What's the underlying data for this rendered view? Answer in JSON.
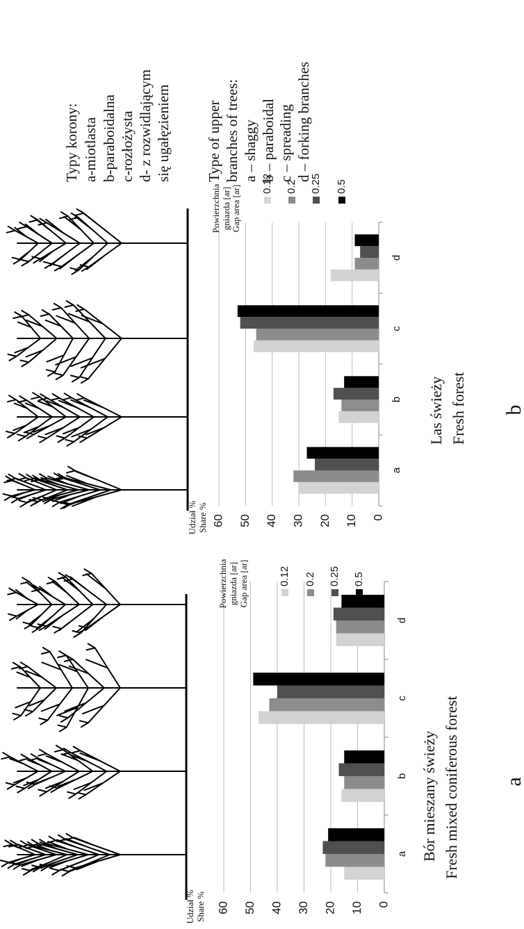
{
  "chart_data": [
    {
      "type": "bar",
      "title": "Bór mieszany świeży",
      "subtitle": "Fresh mixed coniferous forest",
      "panel": "a",
      "ylabel": "Udział %",
      "ylabel_en": "Share %",
      "legend_title": [
        "Powierzchnia",
        "gniazda [ar]",
        "Gap area [ar]"
      ],
      "categories": [
        "a",
        "b",
        "c",
        "d"
      ],
      "series": [
        {
          "name": "0.12",
          "color": "#d3d3d3",
          "values": [
            15,
            16,
            47,
            18
          ]
        },
        {
          "name": "0.2",
          "color": "#8c8c8c",
          "values": [
            22,
            15,
            43,
            18
          ]
        },
        {
          "name": "0.25",
          "color": "#505050",
          "values": [
            23,
            17,
            40,
            19
          ]
        },
        {
          "name": "0.5",
          "color": "#000000",
          "values": [
            21,
            15,
            49,
            16
          ]
        }
      ],
      "ylim": [
        0,
        60
      ],
      "yticks": [
        0,
        10,
        20,
        30,
        40,
        50,
        60
      ],
      "grid": true
    },
    {
      "type": "bar",
      "title": "Las świeży",
      "subtitle": "Fresh forest",
      "panel": "b",
      "ylabel": "Udział %",
      "ylabel_en": "Share %",
      "legend_title": [
        "Powierzchnia",
        "gniazda [ar]",
        "Gap area [ar]"
      ],
      "categories": [
        "a",
        "b",
        "c",
        "d"
      ],
      "series": [
        {
          "name": "0.12",
          "color": "#d3d3d3",
          "values": [
            30,
            15,
            47,
            18
          ]
        },
        {
          "name": "0.2",
          "color": "#8c8c8c",
          "values": [
            32,
            14,
            46,
            9
          ]
        },
        {
          "name": "0.25",
          "color": "#505050",
          "values": [
            24,
            17,
            52,
            7
          ]
        },
        {
          "name": "0.5",
          "color": "#000000",
          "values": [
            27,
            13,
            53,
            9
          ]
        }
      ],
      "ylim": [
        0,
        60
      ],
      "yticks": [
        0,
        10,
        20,
        30,
        40,
        50,
        60
      ],
      "grid": true
    }
  ],
  "crown_types": {
    "polish": [
      "Typy korony:",
      "a-miotlasta",
      "b-paraboidalna",
      "c-rozłożysta",
      "d- z rozwidlającym",
      "się ugałęzieniem"
    ],
    "english": [
      "Type of upper",
      "branches of  trees:",
      "a – shaggy",
      "b – paraboidal",
      "c – spreading",
      "d – forking branches"
    ]
  }
}
